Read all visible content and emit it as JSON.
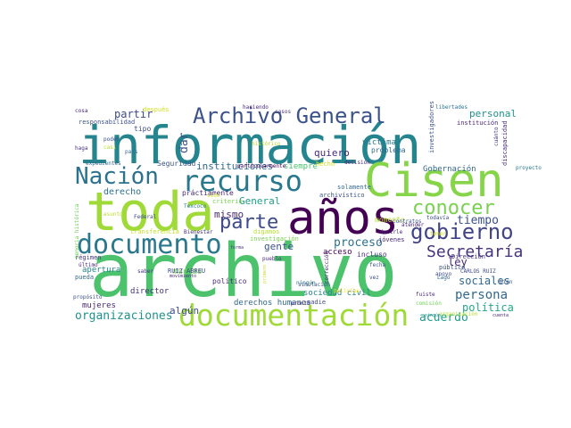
{
  "words": [
    {
      "text": "archivo",
      "color": "#4cc26c"
    },
    {
      "text": "información",
      "color": "#25858e"
    },
    {
      "text": "toda",
      "color": "#a0da39"
    },
    {
      "text": "años",
      "color": "#440154"
    },
    {
      "text": "Cisen",
      "color": "#86d549"
    },
    {
      "text": "documentación",
      "color": "#a0da39"
    },
    {
      "text": "documento",
      "color": "#2a788e"
    },
    {
      "text": "recurso",
      "color": "#2a788e"
    },
    {
      "text": "Nación",
      "color": "#2c728e"
    },
    {
      "text": "Archivo General",
      "color": "#3b528b"
    },
    {
      "text": "gobierno",
      "color": "#414487"
    },
    {
      "text": "conocer",
      "color": "#7ad151"
    },
    {
      "text": "parte",
      "color": "#3e4a89"
    },
    {
      "text": "Secretaría",
      "color": "#46337e"
    },
    {
      "text": "organizaciones",
      "color": "#21918c"
    },
    {
      "text": "acuerdo",
      "color": "#1f9e89"
    },
    {
      "text": "proceso",
      "color": "#2c728e"
    },
    {
      "text": "persona",
      "color": "#31688e"
    },
    {
      "text": "instituciones",
      "color": "#31688e"
    },
    {
      "text": "tiempo",
      "color": "#3b528b"
    },
    {
      "text": "partir",
      "color": "#3e4a89"
    },
    {
      "text": "mismo",
      "color": "#482878"
    },
    {
      "text": "sociales",
      "color": "#31688e"
    },
    {
      "text": "política",
      "color": "#22a884"
    },
    {
      "text": "personal",
      "color": "#21918c"
    },
    {
      "text": "dar",
      "color": "#3b528b"
    },
    {
      "text": "General",
      "color": "#1f9e89"
    },
    {
      "text": "quiero",
      "color": "#482878"
    },
    {
      "text": "derecho",
      "color": "#2c728e"
    },
    {
      "text": "ley",
      "color": "#482878"
    },
    {
      "text": "Gobernación",
      "color": "#31688e"
    },
    {
      "text": "gente",
      "color": "#3b528b"
    },
    {
      "text": "algún",
      "color": "#3e4a89"
    },
    {
      "text": "director",
      "color": "#46337e"
    },
    {
      "text": "mujeres",
      "color": "#482878"
    },
    {
      "text": "derechos humanos",
      "color": "#31688e"
    },
    {
      "text": "sociedad civil",
      "color": "#25858e"
    },
    {
      "text": "práctiamente",
      "color": "#482878"
    },
    {
      "text": "Seguridad",
      "color": "#3b528b"
    },
    {
      "text": "siempre",
      "color": "#4ac16d"
    },
    {
      "text": "tipo",
      "color": "#3e4a89"
    },
    {
      "text": "víctima",
      "color": "#2a788e"
    },
    {
      "text": "problema",
      "color": "#31688e"
    },
    {
      "text": "acceso",
      "color": "#440154"
    },
    {
      "text": "incluso",
      "color": "#46337e"
    },
    {
      "text": "apertura",
      "color": "#25858e"
    },
    {
      "text": "muchas",
      "color": "#73d056"
    },
    {
      "text": "político",
      "color": "#482878"
    },
    {
      "text": "RUIZ ABREU",
      "color": "#3e4a89"
    },
    {
      "text": "Dirección",
      "color": "#46337e"
    },
    {
      "text": "público",
      "color": "#3b528b"
    },
    {
      "text": "jóvenes",
      "color": "#482878"
    },
    {
      "text": "momento",
      "color": "#b5de2b"
    },
    {
      "text": "investigación",
      "color": "#7ad151"
    },
    {
      "text": "hecho",
      "color": "#d2e21b"
    },
    {
      "text": "solamente",
      "color": "#31688e"
    },
    {
      "text": "decisión",
      "color": "#482878"
    },
    {
      "text": "archivístico",
      "color": "#3b528b"
    },
    {
      "text": "particularmente",
      "color": "#440154"
    },
    {
      "text": "criterio",
      "color": "#7ad151"
    },
    {
      "text": "transferencia",
      "color": "#c2df23"
    },
    {
      "text": "digamos",
      "color": "#b5de2b"
    },
    {
      "text": "ningún",
      "color": "#2a788e"
    },
    {
      "text": "pueblo",
      "color": "#482878"
    },
    {
      "text": "nadie",
      "color": "#3e4a89"
    },
    {
      "text": "después",
      "color": "#d2e21b"
    },
    {
      "text": "haciendo",
      "color": "#482878"
    },
    {
      "text": "casos",
      "color": "#46337e"
    },
    {
      "text": "responsabilidad",
      "color": "#3b528b"
    },
    {
      "text": "investigadores",
      "color": "#3b528b"
    },
    {
      "text": "institución",
      "color": "#482878"
    },
    {
      "text": "libertades",
      "color": "#2c728e"
    },
    {
      "text": "discapacidad",
      "color": "#482878"
    },
    {
      "text": "cuánto",
      "color": "#46337e"
    },
    {
      "text": "proyecto",
      "color": "#2a788e"
    },
    {
      "text": "expedientes",
      "color": "#31688e"
    },
    {
      "text": "Federal",
      "color": "#3e4a89"
    },
    {
      "text": "asunto",
      "color": "#b5de2b"
    },
    {
      "text": "régimen",
      "color": "#46337e"
    },
    {
      "text": "último",
      "color": "#482878"
    },
    {
      "text": "pueda",
      "color": "#31688e"
    },
    {
      "text": "saber",
      "color": "#46337e"
    },
    {
      "text": "propósito",
      "color": "#3b528b"
    },
    {
      "text": "memoria histórica",
      "color": "#6ece58"
    },
    {
      "text": "movimiento",
      "color": "#482878"
    },
    {
      "text": "simulación",
      "color": "#3b528b"
    },
    {
      "text": "pronto",
      "color": "#482878"
    },
    {
      "text": "policías",
      "color": "#fde725"
    },
    {
      "text": "apoyo",
      "color": "#3e4a89"
    },
    {
      "text": "CARLOS RUIZ",
      "color": "#3e4a89"
    },
    {
      "text": "Bienestar",
      "color": "#46337e"
    },
    {
      "text": "Texcoco",
      "color": "#2a788e"
    },
    {
      "text": "histórico",
      "color": "#b5de2b"
    },
    {
      "text": "poder",
      "color": "#3b528b"
    },
    {
      "text": "cosa",
      "color": "#482878"
    },
    {
      "text": "país",
      "color": "#31688e"
    },
    {
      "text": "haga",
      "color": "#46337e"
    },
    {
      "text": "vez",
      "color": "#3e4a89"
    },
    {
      "text": "decirle",
      "color": "#482878"
    },
    {
      "text": "contratos",
      "color": "#3b528b"
    },
    {
      "text": "atender",
      "color": "#482878"
    },
    {
      "text": "todavía",
      "color": "#3e4a89"
    },
    {
      "text": "organización",
      "color": "#b5de2b"
    },
    {
      "text": "cuenta",
      "color": "#482878"
    },
    {
      "text": "ningún",
      "color": "#21918c"
    },
    {
      "text": "comisión",
      "color": "#73d056"
    },
    {
      "text": "fuiste",
      "color": "#482878"
    },
    {
      "text": "Lago",
      "color": "#31688e"
    },
    {
      "text": "bien",
      "color": "#3b528b"
    },
    {
      "text": "forma",
      "color": "#46337e"
    },
    {
      "text": "corrección",
      "color": "#482878"
    },
    {
      "text": "primero",
      "color": "#c2df23"
    },
    {
      "text": "sido",
      "color": "#d2e21b"
    },
    {
      "text": "fecha",
      "color": "#3b528b"
    },
    {
      "text": "tener",
      "color": "#d2e21b"
    },
    {
      "text": "casi",
      "color": "#b5de2b"
    }
  ]
}
